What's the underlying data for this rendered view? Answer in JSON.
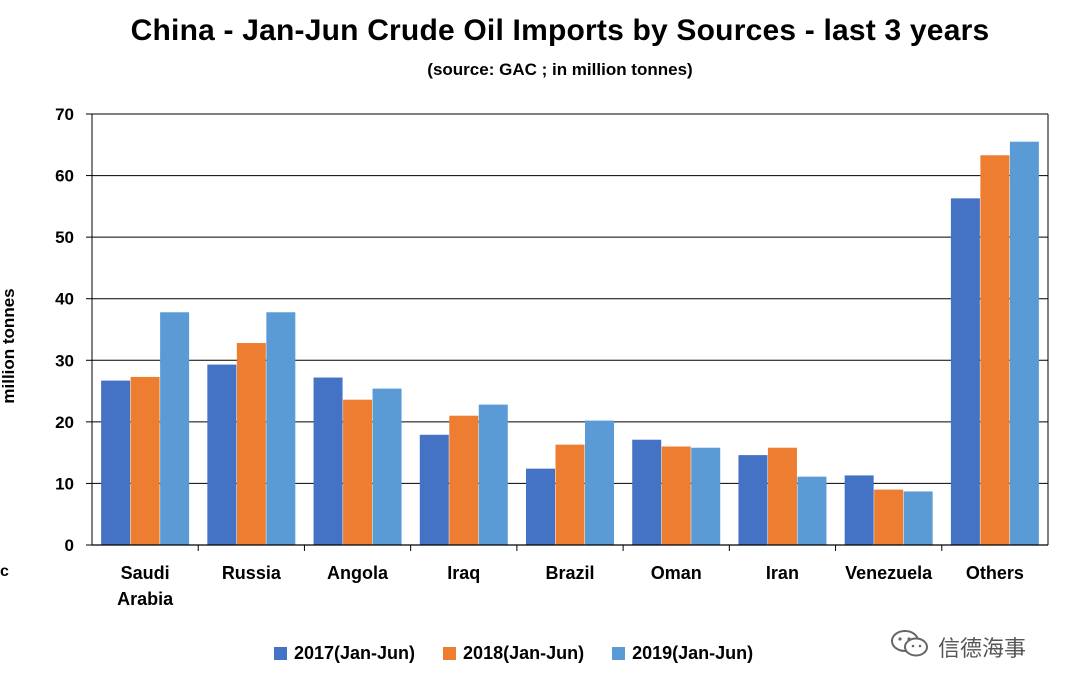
{
  "chart_data": {
    "type": "bar",
    "title": "China - Jan-Jun Crude Oil Imports by Sources - last 3 years",
    "subtitle": "(source: GAC ; in million tonnes)",
    "ylabel": "million tonnes",
    "xlabel": "",
    "ylim": [
      0,
      70
    ],
    "yticks": [
      0,
      10,
      20,
      30,
      40,
      50,
      60,
      70
    ],
    "grid": true,
    "legend_position": "bottom",
    "categories": [
      "Saudi Arabia",
      "Russia",
      "Angola",
      "Iraq",
      "Brazil",
      "Oman",
      "Iran",
      "Venezuela",
      "Others"
    ],
    "series": [
      {
        "name": "2017(Jan-Jun)",
        "color": "#4472C4",
        "values": [
          26.7,
          29.3,
          27.2,
          17.9,
          12.4,
          17.1,
          14.6,
          11.3,
          56.3
        ]
      },
      {
        "name": "2018(Jan-Jun)",
        "color": "#ED7D31",
        "values": [
          27.3,
          32.8,
          23.6,
          21.0,
          16.3,
          16.0,
          15.8,
          9.0,
          63.3
        ]
      },
      {
        "name": "2019(Jan-Jun)",
        "color": "#5B9BD5",
        "values": [
          37.8,
          37.8,
          25.4,
          22.8,
          20.2,
          15.8,
          11.1,
          8.7,
          65.5
        ]
      }
    ]
  },
  "stray_label": "c",
  "watermark": {
    "text": "信德海事",
    "icon": "wechat-icon"
  }
}
